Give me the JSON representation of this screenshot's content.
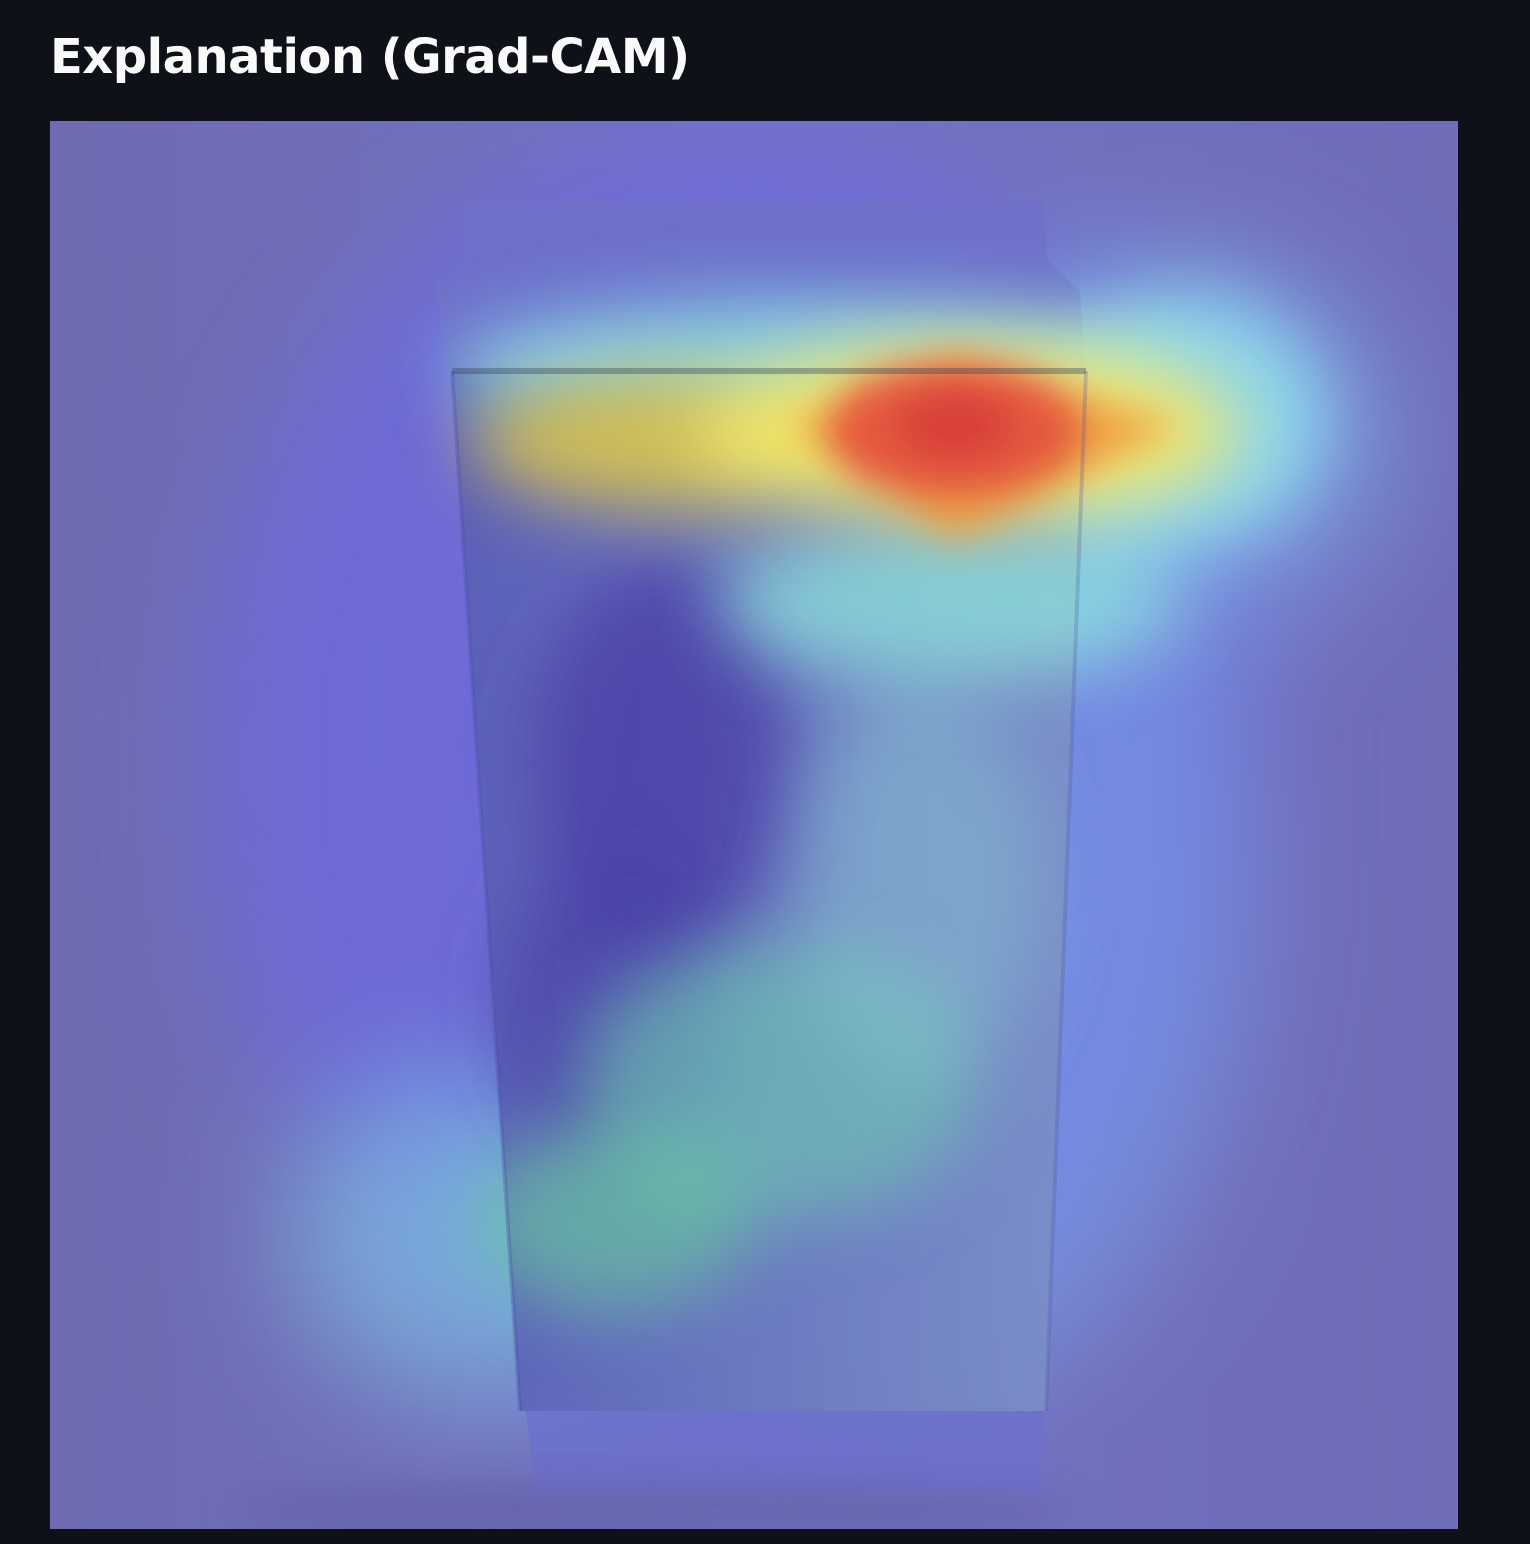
{
  "section": {
    "title": "Explanation (Grad-CAM)"
  },
  "image": {
    "name": "grad-cam-heatmap-overlay",
    "subject": "paper-cup"
  },
  "colors": {
    "page_background": "#0e1118",
    "title_text": "#fafafa",
    "heatmap_low": "#6b68d8",
    "heatmap_mid": "#8ee8e2",
    "heatmap_high": "#e34a3a"
  }
}
